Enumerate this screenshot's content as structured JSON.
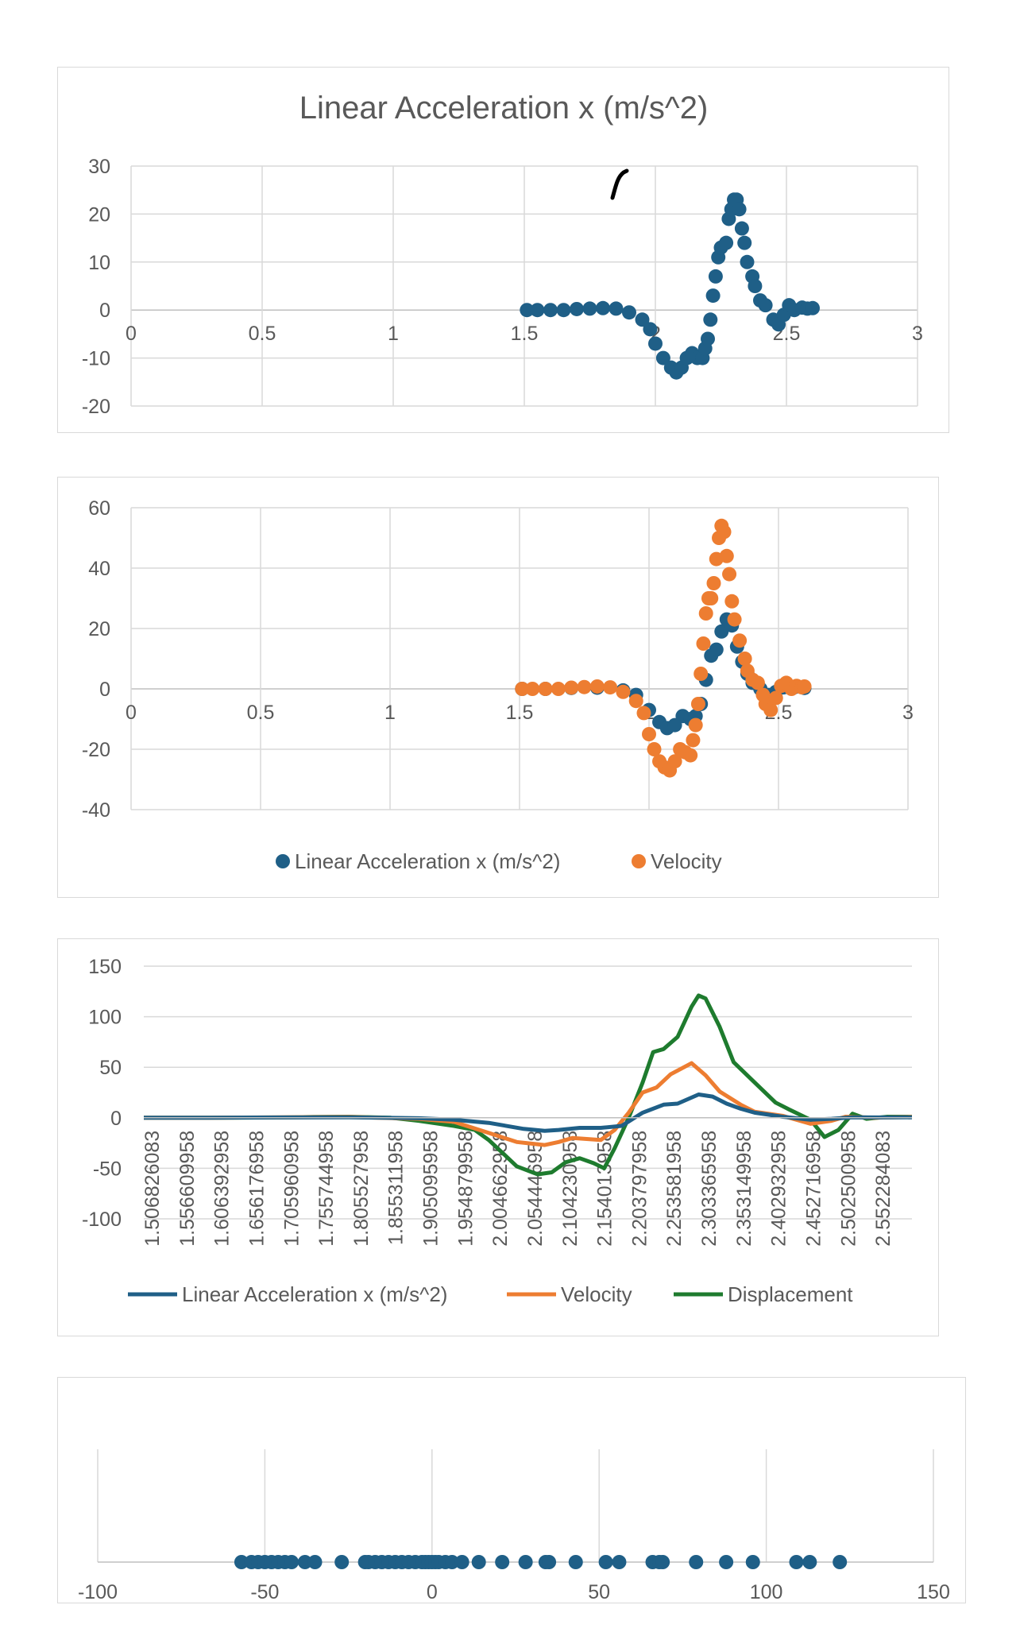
{
  "colors": {
    "accel": "#1f5f87",
    "velocity": "#ed7d31",
    "displacement": "#1e7b2e",
    "grid": "#d9d9d9",
    "text": "#595959"
  },
  "chart_data": [
    {
      "type": "scatter",
      "title": "Linear Acceleration x (m/s^2)",
      "xlim": [
        0,
        3
      ],
      "ylim": [
        -20,
        30
      ],
      "xticks": [
        "0",
        "0.5",
        "1",
        "1.5",
        "2",
        "2.5",
        "3"
      ],
      "yticks": [
        "30",
        "20",
        "10",
        "0",
        "-10",
        "-20"
      ],
      "series": [
        {
          "name": "Linear Acceleration x (m/s^2)",
          "points": [
            [
              1.51,
              0
            ],
            [
              1.55,
              0
            ],
            [
              1.6,
              0
            ],
            [
              1.65,
              0
            ],
            [
              1.7,
              0.2
            ],
            [
              1.75,
              0.3
            ],
            [
              1.8,
              0.4
            ],
            [
              1.85,
              0.3
            ],
            [
              1.9,
              -0.5
            ],
            [
              1.95,
              -2
            ],
            [
              1.98,
              -4
            ],
            [
              2.0,
              -7
            ],
            [
              2.03,
              -10
            ],
            [
              2.06,
              -12
            ],
            [
              2.08,
              -13
            ],
            [
              2.1,
              -12
            ],
            [
              2.12,
              -10
            ],
            [
              2.14,
              -9
            ],
            [
              2.16,
              -10
            ],
            [
              2.18,
              -10
            ],
            [
              2.19,
              -8
            ],
            [
              2.2,
              -6
            ],
            [
              2.21,
              -2
            ],
            [
              2.22,
              3
            ],
            [
              2.23,
              7
            ],
            [
              2.24,
              11
            ],
            [
              2.25,
              13
            ],
            [
              2.27,
              14
            ],
            [
              2.28,
              19
            ],
            [
              2.29,
              21
            ],
            [
              2.3,
              23
            ],
            [
              2.31,
              23
            ],
            [
              2.32,
              21
            ],
            [
              2.33,
              17
            ],
            [
              2.34,
              14
            ],
            [
              2.35,
              10
            ],
            [
              2.37,
              7
            ],
            [
              2.38,
              5
            ],
            [
              2.4,
              2
            ],
            [
              2.42,
              1
            ],
            [
              2.45,
              -2
            ],
            [
              2.47,
              -3
            ],
            [
              2.49,
              -1
            ],
            [
              2.51,
              1
            ],
            [
              2.53,
              0
            ],
            [
              2.56,
              0.5
            ],
            [
              2.58,
              0.3
            ],
            [
              2.6,
              0.4
            ]
          ]
        }
      ]
    },
    {
      "type": "scatter",
      "title": "",
      "xlim": [
        0,
        3
      ],
      "ylim": [
        -40,
        60
      ],
      "xticks": [
        "0",
        "0.5",
        "1",
        "1.5",
        "2",
        "2.5",
        "3"
      ],
      "yticks": [
        "60",
        "40",
        "20",
        "0",
        "-20",
        "-40"
      ],
      "legend": [
        "Linear Acceleration x (m/s^2)",
        "Velocity"
      ],
      "series": [
        {
          "name": "Linear Acceleration x (m/s^2)",
          "points": [
            [
              1.51,
              0
            ],
            [
              1.6,
              0
            ],
            [
              1.7,
              0.3
            ],
            [
              1.8,
              0.4
            ],
            [
              1.9,
              -0.5
            ],
            [
              1.95,
              -2
            ],
            [
              2.0,
              -7
            ],
            [
              2.04,
              -11
            ],
            [
              2.07,
              -13
            ],
            [
              2.1,
              -12
            ],
            [
              2.13,
              -9
            ],
            [
              2.16,
              -10
            ],
            [
              2.18,
              -9
            ],
            [
              2.2,
              -5
            ],
            [
              2.22,
              3
            ],
            [
              2.24,
              11
            ],
            [
              2.26,
              13
            ],
            [
              2.28,
              19
            ],
            [
              2.3,
              23
            ],
            [
              2.32,
              21
            ],
            [
              2.34,
              14
            ],
            [
              2.36,
              9
            ],
            [
              2.38,
              5
            ],
            [
              2.4,
              2
            ],
            [
              2.43,
              0
            ],
            [
              2.46,
              -2
            ],
            [
              2.49,
              -1
            ],
            [
              2.52,
              0.5
            ],
            [
              2.56,
              0.5
            ],
            [
              2.6,
              0.3
            ]
          ]
        },
        {
          "name": "Velocity",
          "points": [
            [
              1.51,
              0
            ],
            [
              1.55,
              0
            ],
            [
              1.6,
              0
            ],
            [
              1.65,
              0
            ],
            [
              1.7,
              0.4
            ],
            [
              1.75,
              0.6
            ],
            [
              1.8,
              0.8
            ],
            [
              1.85,
              0.5
            ],
            [
              1.9,
              -1
            ],
            [
              1.95,
              -4
            ],
            [
              1.98,
              -8
            ],
            [
              2.0,
              -15
            ],
            [
              2.02,
              -20
            ],
            [
              2.04,
              -24
            ],
            [
              2.06,
              -26
            ],
            [
              2.08,
              -27
            ],
            [
              2.1,
              -24
            ],
            [
              2.12,
              -20
            ],
            [
              2.14,
              -21
            ],
            [
              2.16,
              -22
            ],
            [
              2.17,
              -17
            ],
            [
              2.18,
              -12
            ],
            [
              2.19,
              -5
            ],
            [
              2.2,
              5
            ],
            [
              2.21,
              15
            ],
            [
              2.22,
              25
            ],
            [
              2.23,
              30
            ],
            [
              2.24,
              30
            ],
            [
              2.25,
              35
            ],
            [
              2.26,
              43
            ],
            [
              2.27,
              50
            ],
            [
              2.28,
              54
            ],
            [
              2.29,
              52
            ],
            [
              2.3,
              44
            ],
            [
              2.31,
              38
            ],
            [
              2.32,
              29
            ],
            [
              2.33,
              23
            ],
            [
              2.35,
              16
            ],
            [
              2.37,
              10
            ],
            [
              2.38,
              6
            ],
            [
              2.4,
              3
            ],
            [
              2.42,
              2
            ],
            [
              2.44,
              -2
            ],
            [
              2.45,
              -5
            ],
            [
              2.47,
              -7
            ],
            [
              2.49,
              -3
            ],
            [
              2.51,
              1
            ],
            [
              2.53,
              2
            ],
            [
              2.55,
              0
            ],
            [
              2.57,
              1
            ],
            [
              2.59,
              0.5
            ],
            [
              2.6,
              0.8
            ]
          ]
        }
      ]
    },
    {
      "type": "line",
      "title": "",
      "ylim": [
        -100,
        150
      ],
      "yticks": [
        "150",
        "100",
        "50",
        "0",
        "-50",
        "-100"
      ],
      "xrange": [
        1.5068,
        2.605
      ],
      "categories": [
        "1.506826083",
        "1.556609958",
        "1.606392958",
        "1.656176958",
        "1.705960958",
        "1.755744958",
        "1.805527958",
        "1.855311958",
        "1.905095958",
        "1.954879958",
        "2.004662958",
        "2.054446958",
        "2.104230958",
        "2.154013958",
        "2.203797958",
        "2.253581958",
        "2.303365958",
        "2.353149958",
        "2.402932958",
        "2.452716958",
        "2.502500958",
        "2.552284083"
      ],
      "legend": [
        "Linear Acceleration x (m/s^2)",
        "Velocity",
        "Displacement"
      ],
      "series": [
        {
          "name": "Linear Acceleration x (m/s^2)",
          "points": [
            [
              1.5068,
              0
            ],
            [
              1.6,
              0
            ],
            [
              1.7,
              0.3
            ],
            [
              1.8,
              0.4
            ],
            [
              1.9,
              -0.5
            ],
            [
              1.95,
              -2
            ],
            [
              2.0,
              -5
            ],
            [
              2.05,
              -11
            ],
            [
              2.08,
              -13
            ],
            [
              2.1,
              -12
            ],
            [
              2.13,
              -10
            ],
            [
              2.16,
              -10
            ],
            [
              2.19,
              -8
            ],
            [
              2.22,
              5
            ],
            [
              2.25,
              13
            ],
            [
              2.27,
              14
            ],
            [
              2.3,
              23
            ],
            [
              2.32,
              21
            ],
            [
              2.34,
              14
            ],
            [
              2.36,
              9
            ],
            [
              2.38,
              5
            ],
            [
              2.42,
              1
            ],
            [
              2.46,
              -2
            ],
            [
              2.49,
              -1
            ],
            [
              2.52,
              0.5
            ],
            [
              2.56,
              0.3
            ],
            [
              2.605,
              0.4
            ]
          ]
        },
        {
          "name": "Velocity",
          "points": [
            [
              1.5068,
              0
            ],
            [
              1.6,
              0
            ],
            [
              1.7,
              0.4
            ],
            [
              1.8,
              0.8
            ],
            [
              1.9,
              -1
            ],
            [
              1.95,
              -4
            ],
            [
              2.0,
              -15
            ],
            [
              2.04,
              -24
            ],
            [
              2.08,
              -27
            ],
            [
              2.1,
              -24
            ],
            [
              2.12,
              -20
            ],
            [
              2.16,
              -22
            ],
            [
              2.18,
              -12
            ],
            [
              2.2,
              5
            ],
            [
              2.22,
              25
            ],
            [
              2.24,
              30
            ],
            [
              2.26,
              43
            ],
            [
              2.29,
              54
            ],
            [
              2.31,
              42
            ],
            [
              2.33,
              26
            ],
            [
              2.36,
              13
            ],
            [
              2.38,
              6
            ],
            [
              2.42,
              2
            ],
            [
              2.46,
              -6
            ],
            [
              2.49,
              -3
            ],
            [
              2.51,
              1
            ],
            [
              2.55,
              0
            ],
            [
              2.605,
              0.8
            ]
          ]
        },
        {
          "name": "Displacement",
          "points": [
            [
              1.5068,
              0
            ],
            [
              1.55,
              0
            ],
            [
              1.6,
              0
            ],
            [
              1.7,
              0.2
            ],
            [
              1.75,
              0.8
            ],
            [
              1.8,
              1
            ],
            [
              1.86,
              0
            ],
            [
              1.9,
              -3
            ],
            [
              1.95,
              -8
            ],
            [
              1.98,
              -12
            ],
            [
              2.0,
              -22
            ],
            [
              2.02,
              -35
            ],
            [
              2.04,
              -48
            ],
            [
              2.07,
              -56
            ],
            [
              2.09,
              -54
            ],
            [
              2.11,
              -44
            ],
            [
              2.13,
              -40
            ],
            [
              2.15,
              -45
            ],
            [
              2.165,
              -50
            ],
            [
              2.18,
              -30
            ],
            [
              2.2,
              0
            ],
            [
              2.22,
              35
            ],
            [
              2.235,
              65
            ],
            [
              2.25,
              68
            ],
            [
              2.27,
              80
            ],
            [
              2.28,
              95
            ],
            [
              2.29,
              110
            ],
            [
              2.3,
              121
            ],
            [
              2.31,
              118
            ],
            [
              2.33,
              90
            ],
            [
              2.35,
              55
            ],
            [
              2.38,
              35
            ],
            [
              2.41,
              15
            ],
            [
              2.43,
              8
            ],
            [
              2.46,
              -2
            ],
            [
              2.48,
              -19
            ],
            [
              2.5,
              -12
            ],
            [
              2.52,
              4
            ],
            [
              2.54,
              -1
            ],
            [
              2.57,
              1
            ],
            [
              2.605,
              1
            ]
          ]
        }
      ]
    },
    {
      "type": "scatter",
      "title": "",
      "xlim": [
        -100,
        150
      ],
      "xticks": [
        "-100",
        "-50",
        "0",
        "50",
        "100",
        "150"
      ],
      "values": [
        -57,
        -54,
        -52,
        -50,
        -48,
        -46,
        -44,
        -42,
        -38,
        -35,
        -27,
        -20,
        -19,
        -17,
        -15,
        -13,
        -11,
        -9,
        -7,
        -5,
        -3,
        -2,
        -1,
        0,
        1,
        2,
        4,
        6,
        9,
        14,
        21,
        28,
        34,
        35,
        43,
        52,
        56,
        66,
        68,
        69,
        79,
        88,
        96,
        109,
        113,
        122
      ]
    }
  ]
}
